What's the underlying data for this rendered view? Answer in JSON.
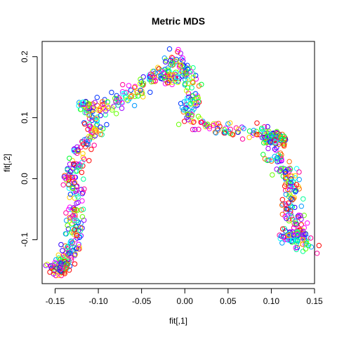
{
  "chart_data": {
    "type": "scatter",
    "title": "Metric MDS",
    "xlabel": "fit[,1]",
    "ylabel": "fit[,2]",
    "xlim": [
      -0.165,
      0.15
    ],
    "ylim": [
      -0.172,
      0.225
    ],
    "xticks": [
      -0.15,
      -0.1,
      -0.05,
      0.0,
      0.05,
      0.1,
      0.15
    ],
    "xtick_labels": [
      "-0.15",
      "-0.10",
      "-0.05",
      "0.00",
      "0.05",
      "0.10",
      "0.15"
    ],
    "yticks": [
      -0.1,
      0.0,
      0.1,
      0.2
    ],
    "ytick_labels": [
      "-0.1",
      "0.0",
      "0.1",
      "0.2"
    ],
    "grid": false,
    "legend": "none",
    "marker": "open-circle",
    "palette": [
      "#FF0000",
      "#FF6600",
      "#FFCC00",
      "#CCFF00",
      "#66FF00",
      "#00FF33",
      "#00FF99",
      "#00FFFF",
      "#0099FF",
      "#0033FF",
      "#3300FF",
      "#9900FF",
      "#FF00FF",
      "#FF0099"
    ],
    "point_count": 1000,
    "random_seed": 7,
    "path": [
      [
        -0.15,
        -0.15
      ],
      [
        -0.14,
        -0.13
      ],
      [
        -0.13,
        -0.11
      ],
      [
        -0.125,
        -0.09
      ],
      [
        -0.13,
        -0.07
      ],
      [
        -0.125,
        -0.04
      ],
      [
        -0.13,
        -0.01
      ],
      [
        -0.135,
        0.01
      ],
      [
        -0.125,
        0.03
      ],
      [
        -0.12,
        0.05
      ],
      [
        -0.11,
        0.07
      ],
      [
        -0.1,
        0.085
      ],
      [
        -0.11,
        0.1
      ],
      [
        -0.115,
        0.115
      ],
      [
        -0.1,
        0.12
      ],
      [
        -0.08,
        0.125
      ],
      [
        -0.06,
        0.14
      ],
      [
        -0.045,
        0.155
      ],
      [
        -0.035,
        0.165
      ],
      [
        -0.025,
        0.175
      ],
      [
        -0.015,
        0.18
      ],
      [
        -0.01,
        0.2
      ],
      [
        0.0,
        0.175
      ],
      [
        0.01,
        0.15
      ],
      [
        0.005,
        0.12
      ],
      [
        0.005,
        0.1
      ],
      [
        0.015,
        0.09
      ],
      [
        0.035,
        0.085
      ],
      [
        0.06,
        0.08
      ],
      [
        0.08,
        0.075
      ],
      [
        0.1,
        0.07
      ],
      [
        0.1,
        0.05
      ],
      [
        0.1,
        0.03
      ],
      [
        0.115,
        0.02
      ],
      [
        0.125,
        -0.01
      ],
      [
        0.12,
        -0.04
      ],
      [
        0.13,
        -0.07
      ],
      [
        0.135,
        -0.1
      ],
      [
        0.145,
        -0.115
      ]
    ],
    "clusters": [
      {
        "x": -0.145,
        "y": -0.145,
        "n": 60,
        "spread": 0.007
      },
      {
        "x": -0.117,
        "y": 0.122,
        "n": 25,
        "spread": 0.004
      },
      {
        "x": 0.105,
        "y": 0.065,
        "n": 70,
        "spread": 0.007
      },
      {
        "x": 0.125,
        "y": -0.095,
        "n": 60,
        "spread": 0.008
      },
      {
        "x": -0.015,
        "y": 0.165,
        "n": 30,
        "spread": 0.006
      }
    ]
  }
}
